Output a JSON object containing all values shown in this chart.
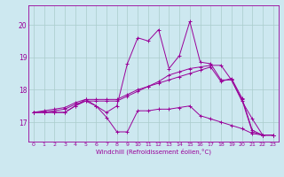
{
  "xlabel": "Windchill (Refroidissement éolien,°C)",
  "background_color": "#cde8f0",
  "grid_color": "#aacccc",
  "line_color": "#990099",
  "xlim": [
    -0.5,
    23.5
  ],
  "ylim": [
    16.4,
    20.6
  ],
  "yticks": [
    17,
    18,
    19,
    20
  ],
  "xticks": [
    0,
    1,
    2,
    3,
    4,
    5,
    6,
    7,
    8,
    9,
    10,
    11,
    12,
    13,
    14,
    15,
    16,
    17,
    18,
    19,
    20,
    21,
    22,
    23
  ],
  "series": [
    [
      17.3,
      17.3,
      17.3,
      17.3,
      17.5,
      17.65,
      17.5,
      17.15,
      16.7,
      16.7,
      17.35,
      17.35,
      17.4,
      17.4,
      17.45,
      17.5,
      17.2,
      17.1,
      17.0,
      16.9,
      16.8,
      16.65,
      16.6,
      16.6
    ],
    [
      17.3,
      17.3,
      17.3,
      17.3,
      17.5,
      17.7,
      17.5,
      17.3,
      17.5,
      18.8,
      19.6,
      19.5,
      19.85,
      18.65,
      19.05,
      20.1,
      18.85,
      18.8,
      18.3,
      18.3,
      17.65,
      17.1,
      16.6,
      16.6
    ],
    [
      17.3,
      17.3,
      17.35,
      17.4,
      17.55,
      17.65,
      17.65,
      17.65,
      17.65,
      17.8,
      17.95,
      18.1,
      18.25,
      18.45,
      18.55,
      18.65,
      18.7,
      18.75,
      18.75,
      18.3,
      17.7,
      16.7,
      16.6,
      16.6
    ],
    [
      17.3,
      17.35,
      17.4,
      17.45,
      17.6,
      17.7,
      17.7,
      17.7,
      17.7,
      17.85,
      18.0,
      18.1,
      18.2,
      18.3,
      18.4,
      18.5,
      18.6,
      18.7,
      18.25,
      18.35,
      17.75,
      16.75,
      16.6,
      16.6
    ]
  ]
}
